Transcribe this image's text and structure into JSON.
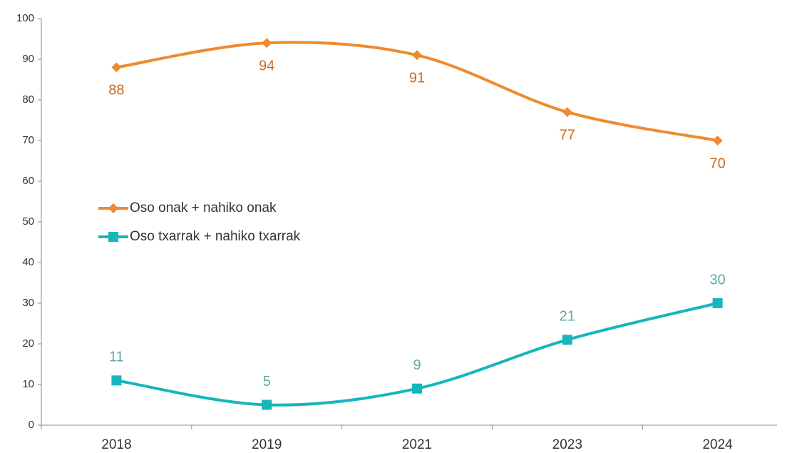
{
  "chart_data": {
    "type": "line",
    "categories": [
      "2018",
      "2019",
      "2021",
      "2023",
      "2024"
    ],
    "series": [
      {
        "name": "Oso onak + nahiko onak",
        "color": "#ef8a2e",
        "label_color": "#c9691f",
        "marker": "diamond",
        "label_position": "below",
        "values": [
          88,
          94,
          91,
          77,
          70
        ]
      },
      {
        "name": "Oso txarrak + nahiko txarrak",
        "color": "#17b6bd",
        "label_color": "#5ea9a6",
        "marker": "square",
        "label_position": "above",
        "values": [
          11,
          5,
          9,
          21,
          30
        ]
      }
    ],
    "ylim": [
      0,
      100
    ],
    "yticks": [
      0,
      10,
      20,
      30,
      40,
      50,
      60,
      70,
      80,
      90,
      100
    ],
    "grid": false,
    "smooth": true,
    "legend": "left"
  }
}
